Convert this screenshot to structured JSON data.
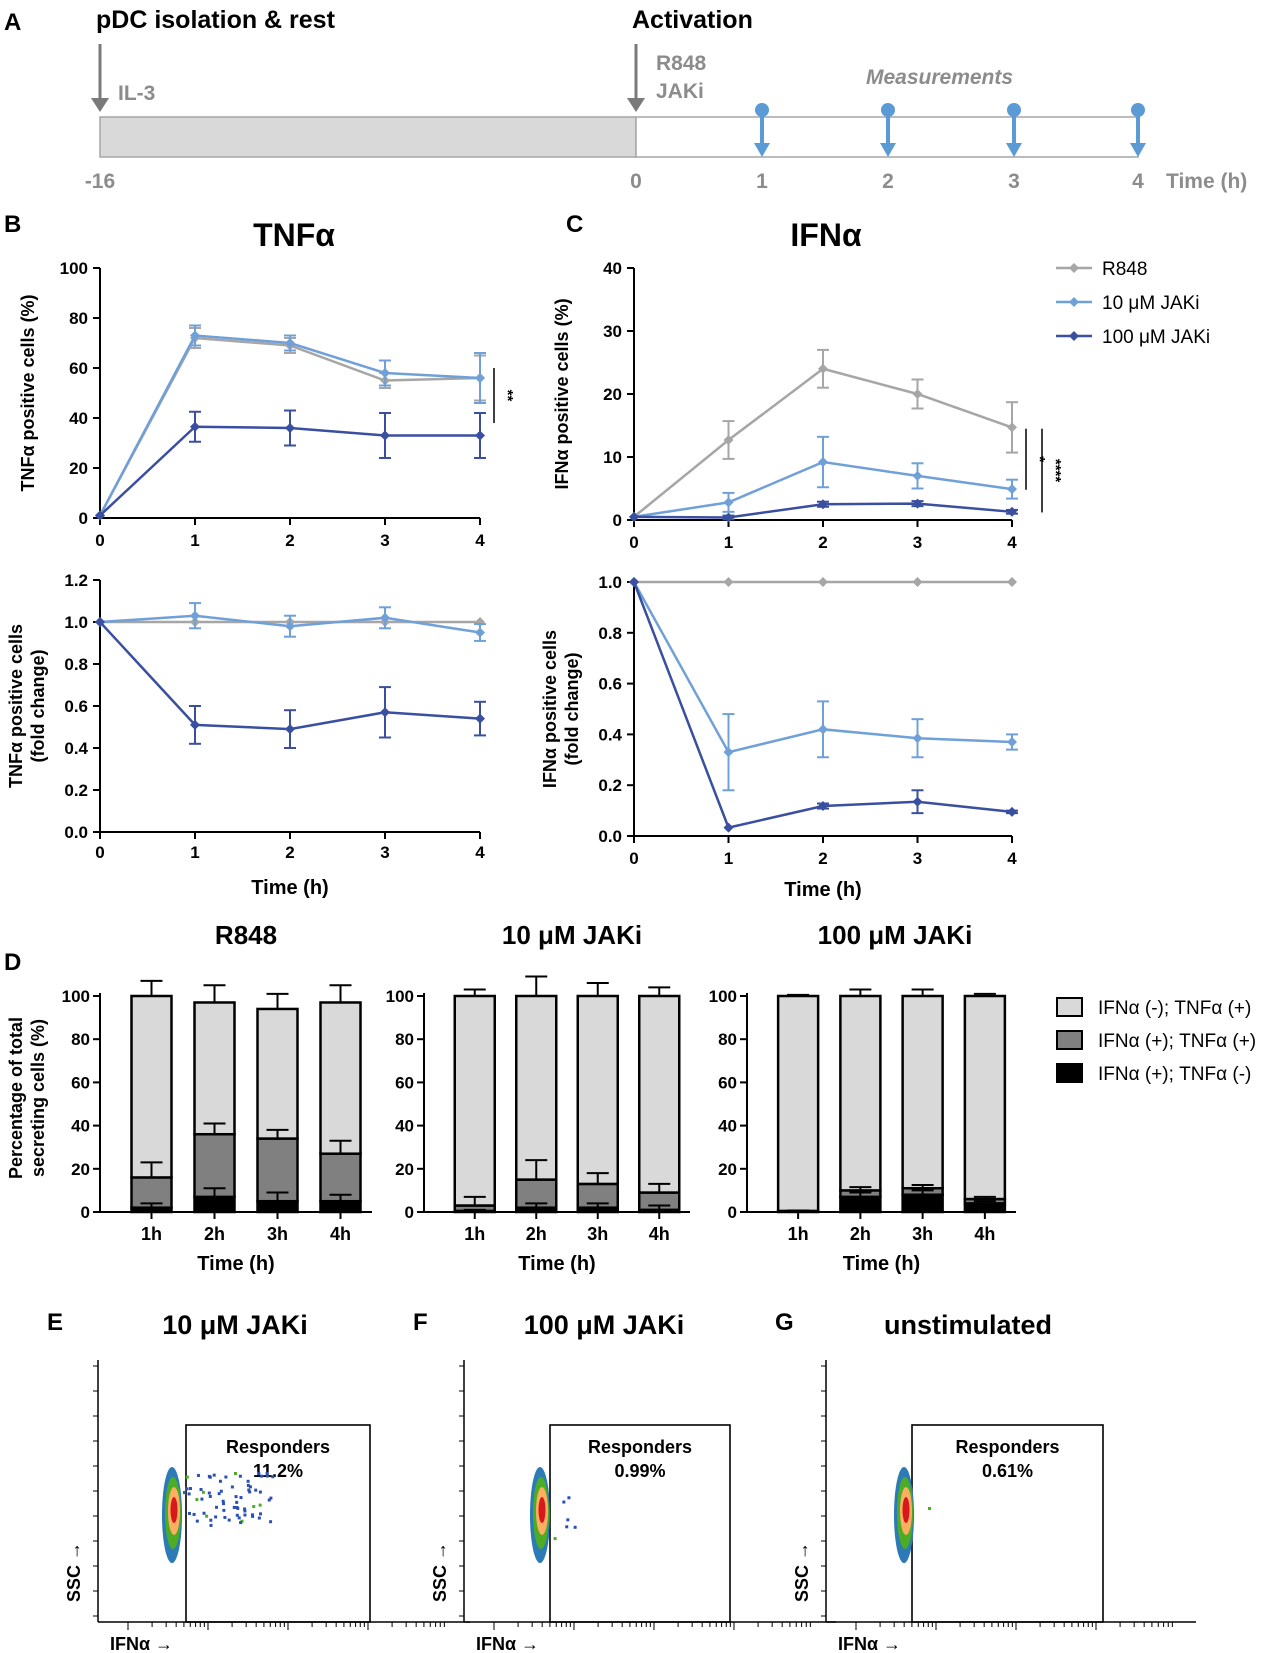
{
  "panels": {
    "A": {
      "letter": "A",
      "left_title": "pDC isolation & rest",
      "right_title": "Activation",
      "il3": "IL-3",
      "r848": "R848",
      "jaki": "JAKi",
      "measurements": "Measurements",
      "ticks": [
        "-16",
        "0",
        "1",
        "2",
        "3",
        "4"
      ],
      "time_label": "Time (h)",
      "colors": {
        "rest_fill": "#d9d9d9",
        "arrow": "#7a7a7a",
        "measure": "#5b9bd5"
      }
    },
    "B": {
      "letter": "B",
      "title": "TNFα"
    },
    "C": {
      "letter": "C",
      "title": "IFNα"
    },
    "D": {
      "letter": "D"
    },
    "E": {
      "letter": "E",
      "title": "10 μM JAKi",
      "gate_label": "Responders",
      "gate_value": "11.2%",
      "x_label": "IFNα →",
      "y_label": "SSC →"
    },
    "F": {
      "letter": "F",
      "title": "100 μM JAKi",
      "gate_label": "Responders",
      "gate_value": "0.99%",
      "x_label": "IFNα →",
      "y_label": "SSC →"
    },
    "G": {
      "letter": "G",
      "title": "unstimulated",
      "gate_label": "Responders",
      "gate_value": "0.61%",
      "x_label": "IFNα →",
      "y_label": "SSC →"
    }
  },
  "legend_lines": [
    {
      "name": "R848",
      "color": "#a6a6a6"
    },
    {
      "name": "10 μM JAKi",
      "color": "#6fa0d8"
    },
    {
      "name": "100 μM JAKi",
      "color": "#3a4fa0"
    }
  ],
  "legend_bars": [
    {
      "name": "IFNα (-); TNFα (+)",
      "color": "#d9d9d9"
    },
    {
      "name": "IFNα (+); TNFα (+)",
      "color": "#808080"
    },
    {
      "name": "IFNα (+); TNFα (-)",
      "color": "#000000"
    }
  ],
  "chart_data": [
    {
      "id": "B_top",
      "type": "line",
      "ylabel": "TNFα positive cells (%)",
      "xlabel": "",
      "x": [
        0,
        1,
        2,
        3,
        4
      ],
      "xlim": [
        0,
        4
      ],
      "ylim": [
        0,
        100
      ],
      "yticks": [
        0,
        20,
        40,
        60,
        80,
        100
      ],
      "ytick_labels": [
        "0",
        "20",
        "40",
        "60",
        "80",
        "100"
      ],
      "series": [
        {
          "name": "R848",
          "color": "#a6a6a6",
          "values": [
            1,
            72,
            69,
            55,
            56
          ],
          "errors": [
            0,
            4,
            3,
            3,
            9
          ]
        },
        {
          "name": "10 μM JAKi",
          "color": "#6fa0d8",
          "values": [
            1,
            73,
            70,
            58,
            56
          ],
          "errors": [
            0,
            4,
            3,
            5,
            10
          ]
        },
        {
          "name": "100 μM JAKi",
          "color": "#3a4fa0",
          "values": [
            1,
            36.5,
            36,
            33,
            33
          ],
          "errors": [
            0,
            6,
            7,
            9,
            9
          ]
        }
      ],
      "significance": [
        {
          "label": "**",
          "y_range": [
            38,
            60
          ]
        }
      ]
    },
    {
      "id": "B_bottom",
      "type": "line",
      "ylabel": "TNFα positive cells (fold change)",
      "xlabel": "Time (h)",
      "x": [
        0,
        1,
        2,
        3,
        4
      ],
      "xlim": [
        0,
        4
      ],
      "ylim": [
        0,
        1.2
      ],
      "yticks": [
        0,
        0.2,
        0.4,
        0.6,
        0.8,
        1.0,
        1.2
      ],
      "ytick_labels": [
        "0.0",
        "0.2",
        "0.4",
        "0.6",
        "0.8",
        "1.0",
        "1.2"
      ],
      "series": [
        {
          "name": "R848",
          "color": "#a6a6a6",
          "values": [
            1.0,
            1.0,
            1.0,
            1.0,
            1.0
          ],
          "errors": [
            0,
            0,
            0,
            0,
            0
          ]
        },
        {
          "name": "10 μM JAKi",
          "color": "#6fa0d8",
          "values": [
            1.0,
            1.03,
            0.98,
            1.02,
            0.95
          ],
          "errors": [
            0,
            0.06,
            0.05,
            0.05,
            0.04
          ]
        },
        {
          "name": "100 μM JAKi",
          "color": "#3a4fa0",
          "values": [
            1.0,
            0.51,
            0.49,
            0.57,
            0.54
          ],
          "errors": [
            0,
            0.09,
            0.09,
            0.12,
            0.08
          ]
        }
      ]
    },
    {
      "id": "C_top",
      "type": "line",
      "ylabel": "IFNα positive cells (%)",
      "xlabel": "",
      "x": [
        0,
        1,
        2,
        3,
        4
      ],
      "xlim": [
        0,
        4
      ],
      "ylim": [
        0,
        40
      ],
      "yticks": [
        0,
        10,
        20,
        30,
        40
      ],
      "ytick_labels": [
        "0",
        "10",
        "20",
        "30",
        "40"
      ],
      "series": [
        {
          "name": "R848",
          "color": "#a6a6a6",
          "values": [
            0.5,
            12.7,
            24,
            20,
            14.7
          ],
          "errors": [
            0,
            3,
            3,
            2.3,
            4
          ]
        },
        {
          "name": "10 μM JAKi",
          "color": "#6fa0d8",
          "values": [
            0.5,
            2.8,
            9.2,
            7,
            4.9
          ],
          "errors": [
            0,
            1.5,
            4,
            2,
            1.5
          ]
        },
        {
          "name": "100 μM JAKi",
          "color": "#3a4fa0",
          "values": [
            0.5,
            0.4,
            2.5,
            2.6,
            1.3
          ],
          "errors": [
            0,
            0.3,
            0.4,
            0.4,
            0.3
          ]
        }
      ],
      "significance": [
        {
          "label": "*",
          "y_range": [
            4.8,
            14.5
          ]
        },
        {
          "label": "****",
          "y_range": [
            1.2,
            14.5
          ]
        }
      ]
    },
    {
      "id": "C_bottom",
      "type": "line",
      "ylabel": "IFNα positive cells (fold change)",
      "xlabel": "Time (h)",
      "x": [
        0,
        1,
        2,
        3,
        4
      ],
      "xlim": [
        0,
        4
      ],
      "ylim": [
        0,
        1.0
      ],
      "yticks": [
        0,
        0.2,
        0.4,
        0.6,
        0.8,
        1.0
      ],
      "ytick_labels": [
        "0.0",
        "0.2",
        "0.4",
        "0.6",
        "0.8",
        "1.0"
      ],
      "series": [
        {
          "name": "R848",
          "color": "#a6a6a6",
          "values": [
            1.0,
            1.0,
            1.0,
            1.0,
            1.0
          ],
          "errors": [
            0,
            0,
            0,
            0,
            0
          ]
        },
        {
          "name": "10 μM JAKi",
          "color": "#6fa0d8",
          "values": [
            1.0,
            0.33,
            0.42,
            0.385,
            0.37
          ],
          "errors": [
            0,
            0.15,
            0.11,
            0.075,
            0.03
          ]
        },
        {
          "name": "100 μM JAKi",
          "color": "#3a4fa0",
          "values": [
            1.0,
            0.033,
            0.118,
            0.135,
            0.095
          ],
          "errors": [
            0,
            0,
            0.01,
            0.045,
            0.005
          ]
        }
      ]
    },
    {
      "id": "D_R848",
      "type": "bar",
      "stacked": true,
      "title": "R848",
      "ylabel": "Percentage of total secreting cells (%)",
      "xlabel": "Time (h)",
      "categories": [
        "1h",
        "2h",
        "3h",
        "4h"
      ],
      "ylim": [
        0,
        100
      ],
      "yticks": [
        0,
        20,
        40,
        60,
        80,
        100
      ],
      "ytick_labels": [
        "0",
        "20",
        "40",
        "60",
        "80",
        "100"
      ],
      "series": [
        {
          "name": "IFNα (+); TNFα (-)",
          "color": "#000000",
          "values": [
            2,
            7,
            5,
            5
          ],
          "errors": [
            2,
            4,
            4,
            3
          ]
        },
        {
          "name": "IFNα (+); TNFα (+)",
          "color": "#808080",
          "values": [
            14,
            29,
            29,
            22
          ],
          "errors": [
            7,
            5,
            4,
            6
          ]
        },
        {
          "name": "IFNα (-); TNFα (+)",
          "color": "#d9d9d9",
          "values": [
            84,
            61,
            60,
            70
          ],
          "errors": [
            7,
            8,
            7,
            8
          ]
        }
      ]
    },
    {
      "id": "D_10uM",
      "type": "bar",
      "stacked": true,
      "title": "10 μM JAKi",
      "ylabel": "",
      "xlabel": "Time (h)",
      "categories": [
        "1h",
        "2h",
        "3h",
        "4h"
      ],
      "ylim": [
        0,
        100
      ],
      "yticks": [
        0,
        20,
        40,
        60,
        80,
        100
      ],
      "ytick_labels": [
        "0",
        "20",
        "40",
        "60",
        "80",
        "100"
      ],
      "series": [
        {
          "name": "IFNα (+); TNFα (-)",
          "color": "#000000",
          "values": [
            0.5,
            2,
            2,
            1
          ],
          "errors": [
            0.5,
            2,
            2,
            2
          ]
        },
        {
          "name": "IFNα (+); TNFα (+)",
          "color": "#808080",
          "values": [
            2.5,
            13,
            11,
            8
          ],
          "errors": [
            4,
            9,
            5,
            4
          ]
        },
        {
          "name": "IFNα (-); TNFα (+)",
          "color": "#d9d9d9",
          "values": [
            97,
            85,
            87,
            91
          ],
          "errors": [
            3,
            9,
            6,
            4
          ]
        }
      ]
    },
    {
      "id": "D_100uM",
      "type": "bar",
      "stacked": true,
      "title": "100 μM JAKi",
      "ylabel": "",
      "xlabel": "Time (h)",
      "categories": [
        "1h",
        "2h",
        "3h",
        "4h"
      ],
      "ylim": [
        0,
        100
      ],
      "yticks": [
        0,
        20,
        40,
        60,
        80,
        100
      ],
      "ytick_labels": [
        "0",
        "20",
        "40",
        "60",
        "80",
        "100"
      ],
      "series": [
        {
          "name": "IFNα (+); TNFα (-)",
          "color": "#000000",
          "values": [
            0.3,
            7,
            8,
            4
          ],
          "errors": [
            0.3,
            2,
            2,
            1
          ]
        },
        {
          "name": "IFNα (+); TNFα (+)",
          "color": "#808080",
          "values": [
            0.2,
            3,
            3,
            2
          ],
          "errors": [
            0.2,
            1.5,
            1.5,
            1
          ]
        },
        {
          "name": "IFNα (-); TNFα (+)",
          "color": "#d9d9d9",
          "values": [
            99.5,
            90,
            89,
            94
          ],
          "errors": [
            0.5,
            3,
            3,
            1
          ]
        }
      ]
    }
  ]
}
